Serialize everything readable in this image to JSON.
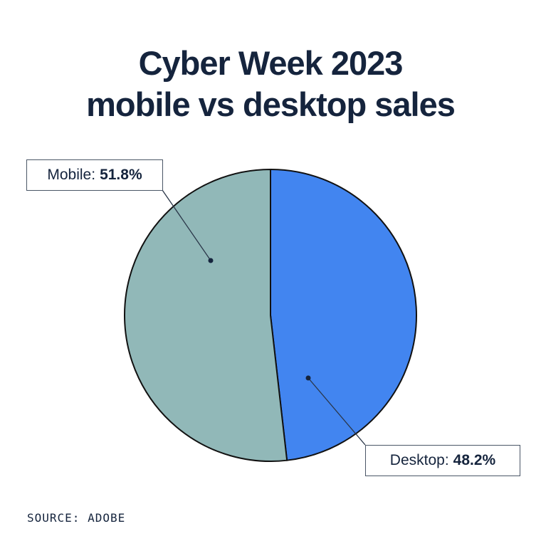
{
  "chart_data": {
    "type": "pie",
    "title": "Cyber Week 2023",
    "subtitle": "mobile vs desktop sales",
    "slices": [
      {
        "label": "Desktop",
        "value": 48.2,
        "display": "48.2%",
        "color": "#4285f0"
      },
      {
        "label": "Mobile",
        "value": 51.8,
        "display": "51.8%",
        "color": "#91b8b8"
      }
    ],
    "source": "SOURCE: ADOBE"
  }
}
